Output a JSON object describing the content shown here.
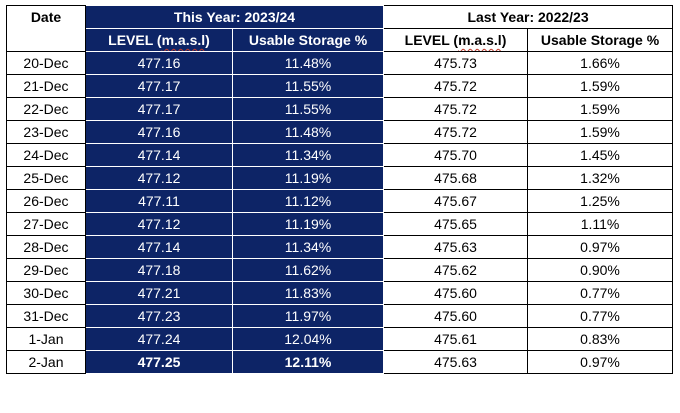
{
  "header": {
    "date_label": "Date",
    "this_year_label": "This Year: 2023/24",
    "last_year_label": "Last Year: 2022/23",
    "level_label": "LEVEL (m.a.s.l)",
    "storage_label": "Usable Storage %"
  },
  "colors": {
    "this_year_background": "#0d2466",
    "highlight_text": "#ffff33"
  },
  "rows": [
    {
      "date": "20-Dec",
      "this_level": "477.16",
      "this_storage": "11.48%",
      "last_level": "475.73",
      "last_storage": "1.66%"
    },
    {
      "date": "21-Dec",
      "this_level": "477.17",
      "this_storage": "11.55%",
      "last_level": "475.72",
      "last_storage": "1.59%"
    },
    {
      "date": "22-Dec",
      "this_level": "477.17",
      "this_storage": "11.55%",
      "last_level": "475.72",
      "last_storage": "1.59%"
    },
    {
      "date": "23-Dec",
      "this_level": "477.16",
      "this_storage": "11.48%",
      "last_level": "475.72",
      "last_storage": "1.59%"
    },
    {
      "date": "24-Dec",
      "this_level": "477.14",
      "this_storage": "11.34%",
      "last_level": "475.70",
      "last_storage": "1.45%"
    },
    {
      "date": "25-Dec",
      "this_level": "477.12",
      "this_storage": "11.19%",
      "last_level": "475.68",
      "last_storage": "1.32%"
    },
    {
      "date": "26-Dec",
      "this_level": "477.11",
      "this_storage": "11.12%",
      "last_level": "475.67",
      "last_storage": "1.25%"
    },
    {
      "date": "27-Dec",
      "this_level": "477.12",
      "this_storage": "11.19%",
      "last_level": "475.65",
      "last_storage": "1.11%"
    },
    {
      "date": "28-Dec",
      "this_level": "477.14",
      "this_storage": "11.34%",
      "last_level": "475.63",
      "last_storage": "0.97%"
    },
    {
      "date": "29-Dec",
      "this_level": "477.18",
      "this_storage": "11.62%",
      "last_level": "475.62",
      "last_storage": "0.90%"
    },
    {
      "date": "30-Dec",
      "this_level": "477.21",
      "this_storage": "11.83%",
      "last_level": "475.60",
      "last_storage": "0.77%"
    },
    {
      "date": "31-Dec",
      "this_level": "477.23",
      "this_storage": "11.97%",
      "last_level": "475.60",
      "last_storage": "0.77%"
    },
    {
      "date": "1-Jan",
      "this_level": "477.24",
      "this_storage": "12.04%",
      "last_level": "475.61",
      "last_storage": "0.83%"
    },
    {
      "date": "2-Jan",
      "this_level": "477.25",
      "this_storage": "12.11%",
      "last_level": "475.63",
      "last_storage": "0.97%",
      "highlight": true
    }
  ]
}
